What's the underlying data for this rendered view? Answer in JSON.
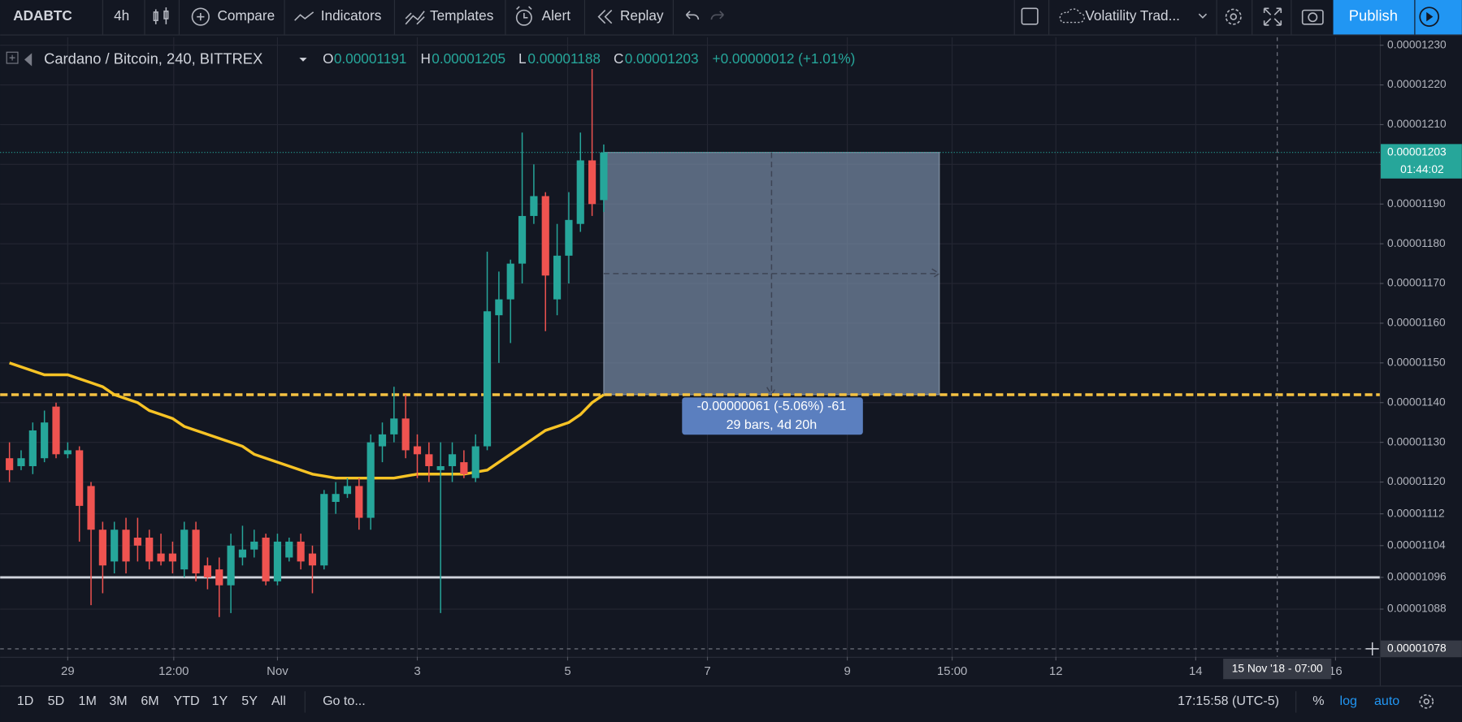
{
  "toolbar": {
    "symbol": "ADABTC",
    "interval": "4h",
    "compare": "Compare",
    "indicators": "Indicators",
    "templates": "Templates",
    "alert": "Alert",
    "replay": "Replay",
    "layout": "Volatility Trad...",
    "publish": "Publish"
  },
  "header": {
    "title": "Cardano / Bitcoin, 240, BITTREX",
    "o": "O",
    "h": "H",
    "l": "L",
    "c": "C",
    "change": "+0.00000012 (+1.01%)"
  },
  "chart_data": {
    "type": "candlestick",
    "up_color": "#26a69a",
    "down_color": "#ef5350",
    "open": [
      1.126e-05,
      1.124e-05,
      1.124e-05,
      1.126e-05,
      1.139e-05,
      1.127e-05,
      1.128e-05,
      1.119e-05,
      1.108e-05,
      1.1e-05,
      1.108e-05,
      1.106e-05,
      1.106e-05,
      1.102e-05,
      1.102e-05,
      1.098e-05,
      1.108e-05,
      1.099e-05,
      1.098e-05,
      1.094e-05,
      1.101e-05,
      1.103e-05,
      1.106e-05,
      1.095e-05,
      1.101e-05,
      1.105e-05,
      1.102e-05,
      1.099e-05,
      1.115e-05,
      1.117e-05,
      1.119e-05,
      1.111e-05,
      1.129e-05,
      1.132e-05,
      1.136e-05,
      1.129e-05,
      1.127e-05,
      1.123e-05,
      1.124e-05,
      1.125e-05,
      1.121e-05,
      1.129e-05,
      1.162e-05,
      1.166e-05,
      1.175e-05,
      1.187e-05,
      1.192e-05,
      1.166e-05,
      1.177e-05,
      1.185e-05,
      1.201e-05,
      1.191e-05
    ],
    "high": [
      1.13e-05,
      1.128e-05,
      1.135e-05,
      1.138e-05,
      1.14e-05,
      1.13e-05,
      1.129e-05,
      1.12e-05,
      1.11e-05,
      1.11e-05,
      1.111e-05,
      1.111e-05,
      1.108e-05,
      1.107e-05,
      1.105e-05,
      1.11e-05,
      1.11e-05,
      1.101e-05,
      1.101e-05,
      1.107e-05,
      1.109e-05,
      1.108e-05,
      1.107e-05,
      1.107e-05,
      1.106e-05,
      1.107e-05,
      1.104e-05,
      1.118e-05,
      1.12e-05,
      1.121e-05,
      1.121e-05,
      1.132e-05,
      1.135e-05,
      1.144e-05,
      1.142e-05,
      1.132e-05,
      1.13e-05,
      1.13e-05,
      1.13e-05,
      1.128e-05,
      1.132e-05,
      1.178e-05,
      1.173e-05,
      1.176e-05,
      1.208e-05,
      1.2e-05,
      1.193e-05,
      1.185e-05,
      1.193e-05,
      1.208e-05,
      1.224e-05,
      1.205e-05
    ],
    "low": [
      1.12e-05,
      1.123e-05,
      1.122e-05,
      1.125e-05,
      1.126e-05,
      1.126e-05,
      1.105e-05,
      1.089e-05,
      1.092e-05,
      1.097e-05,
      1.097e-05,
      1.1e-05,
      1.098e-05,
      1.099e-05,
      1.097e-05,
      1.096e-05,
      1.095e-05,
      1.093e-05,
      1.086e-05,
      1.087e-05,
      1.099e-05,
      1.101e-05,
      1.094e-05,
      1.094e-05,
      1.1e-05,
      1.098e-05,
      1.092e-05,
      1.098e-05,
      1.112e-05,
      1.116e-05,
      1.108e-05,
      1.108e-05,
      1.125e-05,
      1.13e-05,
      1.126e-05,
      1.121e-05,
      1.12e-05,
      1.087e-05,
      1.12e-05,
      1.121e-05,
      1.12e-05,
      1.128e-05,
      1.15e-05,
      1.155e-05,
      1.17e-05,
      1.185e-05,
      1.158e-05,
      1.162e-05,
      1.17e-05,
      1.183e-05,
      1.187e-05,
      1.188e-05
    ],
    "close": [
      1.123e-05,
      1.126e-05,
      1.133e-05,
      1.135e-05,
      1.127e-05,
      1.128e-05,
      1.114e-05,
      1.108e-05,
      1.099e-05,
      1.108e-05,
      1.1e-05,
      1.104e-05,
      1.1e-05,
      1.1e-05,
      1.1e-05,
      1.108e-05,
      1.097e-05,
      1.096e-05,
      1.094e-05,
      1.104e-05,
      1.103e-05,
      1.105e-05,
      1.095e-05,
      1.105e-05,
      1.105e-05,
      1.1e-05,
      1.099e-05,
      1.117e-05,
      1.117e-05,
      1.119e-05,
      1.111e-05,
      1.13e-05,
      1.132e-05,
      1.136e-05,
      1.128e-05,
      1.127e-05,
      1.124e-05,
      1.124e-05,
      1.127e-05,
      1.122e-05,
      1.129e-05,
      1.163e-05,
      1.166e-05,
      1.175e-05,
      1.187e-05,
      1.192e-05,
      1.172e-05,
      1.177e-05,
      1.186e-05,
      1.201e-05,
      1.19e-05,
      1.203e-05
    ],
    "ma": {
      "color": "#f7c325",
      "values": [
        1.15e-05,
        1.149e-05,
        1.148e-05,
        1.147e-05,
        1.147e-05,
        1.147e-05,
        1.146e-05,
        1.145e-05,
        1.144e-05,
        1.142e-05,
        1.141e-05,
        1.14e-05,
        1.138e-05,
        1.137e-05,
        1.136e-05,
        1.134e-05,
        1.133e-05,
        1.132e-05,
        1.131e-05,
        1.13e-05,
        1.129e-05,
        1.127e-05,
        1.126e-05,
        1.125e-05,
        1.124e-05,
        1.123e-05,
        1.122e-05,
        1.1215e-05,
        1.121e-05,
        1.121e-05,
        1.121e-05,
        1.121e-05,
        1.121e-05,
        1.121e-05,
        1.1215e-05,
        1.122e-05,
        1.122e-05,
        1.122e-05,
        1.122e-05,
        1.122e-05,
        1.1225e-05,
        1.123e-05,
        1.125e-05,
        1.127e-05,
        1.129e-05,
        1.131e-05,
        1.133e-05,
        1.134e-05,
        1.135e-05,
        1.137e-05,
        1.14e-05,
        1.142e-05
      ]
    },
    "levels": [
      {
        "value": 1.142e-05,
        "color": "#f5c242",
        "style": "dashed"
      },
      {
        "value": 1.096e-05,
        "color": "#d1d4dc",
        "style": "solid"
      }
    ],
    "last_price_countdown": "01:44:02",
    "measure": {
      "x": [
        51,
        79.8
      ],
      "y": [
        1.203e-05,
        1.142e-05
      ],
      "lines": [
        "-0.00000061 (-5.06%) -61",
        "29 bars, 4d 20h"
      ]
    },
    "crosshair": {
      "x": 108.8,
      "x_label": "15 Nov '18 - 07:00",
      "y": {
        "value": 1.078e-05,
        "label": "0.00001078"
      }
    },
    "xlim": [
      -0.8,
      117.6
    ],
    "xticks": [
      {
        "value": 5,
        "label": "29"
      },
      {
        "value": 14.1,
        "label": "12:00"
      },
      {
        "value": 23,
        "label": "Nov"
      },
      {
        "value": 35,
        "label": "3"
      },
      {
        "value": 47.9,
        "label": "5"
      },
      {
        "value": 59.9,
        "label": "7"
      },
      {
        "value": 71.9,
        "label": "9"
      },
      {
        "value": 80.9,
        "label": "15:00"
      },
      {
        "value": 89.8,
        "label": "12"
      },
      {
        "value": 101.8,
        "label": "14"
      },
      {
        "value": 113.8,
        "label": "16"
      }
    ],
    "ylim": [
      1.076e-05,
      1.232e-05
    ],
    "yticks": [
      {
        "value": 1.23e-05,
        "label": "0.00001230"
      },
      {
        "value": 1.22e-05,
        "label": "0.00001220"
      },
      {
        "value": 1.21e-05,
        "label": "0.00001210"
      },
      {
        "value": 1.2e-05,
        "label": "0.00001200"
      },
      {
        "value": 1.19e-05,
        "label": "0.00001190"
      },
      {
        "value": 1.18e-05,
        "label": "0.00001180"
      },
      {
        "value": 1.17e-05,
        "label": "0.00001170"
      },
      {
        "value": 1.16e-05,
        "label": "0.00001160"
      },
      {
        "value": 1.15e-05,
        "label": "0.00001150"
      },
      {
        "value": 1.14e-05,
        "label": "0.00001140"
      },
      {
        "value": 1.13e-05,
        "label": "0.00001130"
      },
      {
        "value": 1.12e-05,
        "label": "0.00001120"
      },
      {
        "value": 1.112e-05,
        "label": "0.00001112"
      },
      {
        "value": 1.104e-05,
        "label": "0.00001104"
      },
      {
        "value": 1.096e-05,
        "label": "0.00001096"
      },
      {
        "value": 1.088e-05,
        "label": "0.00001088"
      }
    ],
    "grid": true
  },
  "bottom_bar": {
    "ranges": [
      "1D",
      "5D",
      "1M",
      "3M",
      "6M",
      "YTD",
      "1Y",
      "5Y",
      "All"
    ],
    "goto": "Go to...",
    "clock": "17:15:58 (UTC-5)",
    "percent": "%",
    "log": "log",
    "auto": "auto"
  }
}
